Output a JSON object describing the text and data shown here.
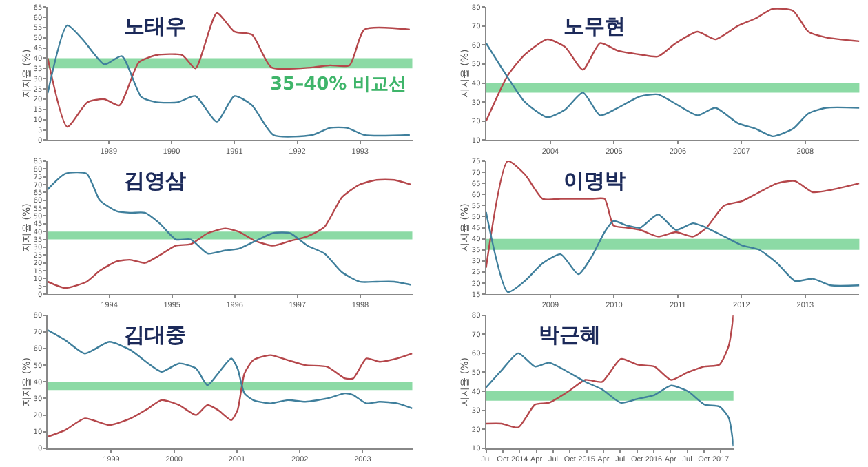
{
  "chart_data": [
    {
      "type": "line",
      "title": "노태우",
      "ylabel": "지지율 (%)",
      "xlim": [
        1988.03,
        1993.83
      ],
      "xticks": [
        1989,
        1990,
        1991,
        1992,
        1993
      ],
      "ylim": [
        0,
        65
      ],
      "yticks": [
        0,
        5,
        10,
        15,
        20,
        25,
        30,
        35,
        40,
        45,
        50,
        55,
        60,
        65
      ],
      "bands": [
        {
          "axis": "y",
          "from": 35,
          "to": 40,
          "label": "35–40% 비교선",
          "color": "#7fd69b"
        }
      ],
      "series": [
        {
          "color": "#b5474b",
          "x": [
            1988.03,
            1988.34,
            1988.66,
            1988.93,
            1989.17,
            1989.48,
            1989.76,
            1990.17,
            1990.38,
            1990.72,
            1991.0,
            1991.28,
            1991.59,
            1992.24,
            1992.52,
            1992.83,
            1993.07,
            1993.79
          ],
          "values": [
            40,
            6.5,
            18.5,
            20,
            17,
            38,
            41.5,
            41.5,
            35,
            62,
            53,
            51.5,
            35.5,
            35.5,
            36.5,
            36.5,
            54,
            54
          ]
        },
        {
          "color": "#3f7f9c",
          "x": [
            1988.03,
            1988.34,
            1988.59,
            1988.93,
            1989.21,
            1989.52,
            1989.76,
            1990.1,
            1990.38,
            1990.72,
            1991.0,
            1991.28,
            1991.62,
            1992.24,
            1992.52,
            1992.79,
            1993.07,
            1993.79
          ],
          "values": [
            23,
            56,
            49,
            37,
            41,
            21,
            18.5,
            18.5,
            21.5,
            9,
            21.5,
            17,
            2.5,
            2.5,
            6,
            6,
            2.5,
            2.5
          ]
        }
      ]
    },
    {
      "type": "line",
      "title": "노무현",
      "ylabel": "지지율 (%)",
      "xlim": [
        2002.99,
        2008.85
      ],
      "xticks": [
        2004,
        2005,
        2006,
        2007,
        2008
      ],
      "ylim": [
        10,
        80
      ],
      "yticks": [
        10,
        20,
        30,
        40,
        50,
        60,
        70,
        80
      ],
      "bands": [
        {
          "axis": "y",
          "from": 35,
          "to": 40,
          "color": "#7fd69b"
        }
      ],
      "x": [
        2002.99,
        2003.33,
        2003.6,
        2003.95,
        2004.23,
        2004.51,
        2004.78,
        2005.06,
        2005.41,
        2005.69,
        2005.97,
        2006.31,
        2006.59,
        2006.94,
        2007.22,
        2007.49,
        2007.81,
        2008.05,
        2008.33,
        2008.85
      ],
      "series": [
        {
          "color": "#b5474b",
          "values": [
            20,
            44,
            55,
            63,
            59,
            47,
            61,
            57,
            55,
            54,
            61,
            67,
            63,
            70,
            74,
            79,
            78,
            67,
            64,
            62
          ]
        },
        {
          "color": "#3f7f9c",
          "values": [
            61,
            43,
            30,
            22,
            26,
            35,
            23,
            27,
            33,
            34,
            29,
            23,
            27,
            19,
            16,
            12,
            16,
            24,
            27,
            27
          ]
        }
      ]
    },
    {
      "type": "line",
      "title": "김영삼",
      "ylabel": "지지율 (%)",
      "xlim": [
        1993.02,
        1998.83
      ],
      "xticks": [
        1994,
        1995,
        1996,
        1997,
        1998
      ],
      "ylim": [
        0,
        85
      ],
      "yticks": [
        0,
        5,
        10,
        15,
        20,
        25,
        30,
        35,
        40,
        45,
        50,
        55,
        60,
        65,
        70,
        75,
        80,
        85
      ],
      "bands": [
        {
          "axis": "y",
          "from": 35,
          "to": 40,
          "color": "#7fd69b"
        }
      ],
      "x": [
        1993.02,
        1993.3,
        1993.64,
        1993.85,
        1994.12,
        1994.33,
        1994.57,
        1994.81,
        1995.06,
        1995.3,
        1995.57,
        1995.85,
        1996.06,
        1996.33,
        1996.61,
        1996.88,
        1997.16,
        1997.43,
        1997.71,
        1997.99,
        1998.26,
        1998.54,
        1998.81
      ],
      "series": [
        {
          "color": "#b5474b",
          "values": [
            8,
            4,
            8,
            15,
            21,
            22,
            20,
            25,
            31,
            32,
            39,
            42,
            40,
            34,
            31,
            34,
            37,
            43,
            62,
            70,
            73,
            73,
            70
          ]
        },
        {
          "color": "#3f7f9c",
          "values": [
            67,
            77,
            77,
            60,
            53,
            52,
            52,
            45,
            35,
            35,
            26,
            28,
            29,
            34,
            39,
            39,
            31,
            26,
            14,
            8,
            8,
            8,
            6
          ]
        }
      ]
    },
    {
      "type": "line",
      "title": "이명박",
      "ylabel": "지지율 (%)",
      "xlim": [
        2007.99,
        2013.85
      ],
      "xticks": [
        2009,
        2010,
        2011,
        2012,
        2013
      ],
      "ylim": [
        15,
        75
      ],
      "yticks": [
        15,
        20,
        25,
        30,
        35,
        40,
        45,
        50,
        55,
        60,
        65,
        70,
        75
      ],
      "bands": [
        {
          "axis": "y",
          "from": 35,
          "to": 40,
          "color": "#7fd69b"
        }
      ],
      "x": [
        2007.99,
        2008.33,
        2008.6,
        2008.88,
        2009.16,
        2009.44,
        2009.65,
        2009.85,
        2009.99,
        2010.2,
        2010.41,
        2010.69,
        2010.97,
        2011.24,
        2011.45,
        2011.73,
        2012.01,
        2012.28,
        2012.56,
        2012.84,
        2013.12,
        2013.4,
        2013.85
      ],
      "series": [
        {
          "color": "#b5474b",
          "values": [
            27,
            75,
            69,
            58,
            58,
            58,
            58,
            58,
            46,
            45,
            44,
            41,
            43,
            41,
            45,
            55,
            57,
            61,
            65,
            66,
            61,
            62,
            65
          ]
        },
        {
          "color": "#3f7f9c",
          "values": [
            52,
            16,
            21,
            29,
            33,
            24,
            32,
            43,
            48,
            46,
            45,
            51,
            44,
            47,
            45,
            41,
            37,
            35,
            29,
            21,
            22,
            19,
            19
          ]
        }
      ]
    },
    {
      "type": "line",
      "title": "김대중",
      "ylabel": "지지율 (%)",
      "xlim": [
        1997.99,
        2003.79
      ],
      "xticks": [
        1999,
        2000,
        2001,
        2002,
        2003
      ],
      "ylim": [
        0,
        80
      ],
      "yticks": [
        0,
        10,
        20,
        30,
        40,
        50,
        60,
        70,
        80
      ],
      "bands": [
        {
          "axis": "y",
          "from": 35,
          "to": 40,
          "color": "#7fd69b"
        }
      ],
      "x": [
        1997.99,
        1998.27,
        1998.58,
        1998.97,
        1999.31,
        1999.59,
        1999.8,
        2000.08,
        2000.35,
        2000.53,
        2000.7,
        2000.91,
        2001.01,
        2001.12,
        2001.26,
        2001.53,
        2001.81,
        2002.09,
        2002.44,
        2002.72,
        2002.85,
        2003.06,
        2003.27,
        2003.55,
        2003.79
      ],
      "series": [
        {
          "color": "#b5474b",
          "values": [
            7,
            11,
            18,
            14,
            18,
            24,
            29,
            26,
            20,
            26,
            23,
            17,
            23,
            45,
            53,
            56,
            53,
            50,
            49,
            42,
            42,
            54,
            52,
            54,
            57
          ]
        },
        {
          "color": "#3f7f9c",
          "values": [
            71,
            65,
            57,
            64,
            59,
            51,
            46,
            51,
            48,
            38,
            45,
            54,
            48,
            33,
            29,
            27,
            29,
            28,
            30,
            33,
            32,
            27,
            28,
            27,
            24
          ]
        }
      ]
    },
    {
      "type": "line",
      "title": "박근혜",
      "ylabel": "지지율 (%)",
      "xlim": [
        2013.5,
        2017.19
      ],
      "xticks": [
        {
          "value": 2013.5,
          "label": "Jul"
        },
        {
          "value": 2013.75,
          "label": "Oct"
        },
        {
          "value": 2014,
          "label": "2014"
        },
        {
          "value": 2014.25,
          "label": "Apr"
        },
        {
          "value": 2014.5,
          "label": "Jul"
        },
        {
          "value": 2014.75,
          "label": "Oct"
        },
        {
          "value": 2015,
          "label": "2015"
        },
        {
          "value": 2015.25,
          "label": "Apr"
        },
        {
          "value": 2015.5,
          "label": "Jul"
        },
        {
          "value": 2015.75,
          "label": "Oct"
        },
        {
          "value": 2016,
          "label": "2016"
        },
        {
          "value": 2016.25,
          "label": "Apr"
        },
        {
          "value": 2016.5,
          "label": "Jul"
        },
        {
          "value": 2016.75,
          "label": "Oct"
        },
        {
          "value": 2017,
          "label": "2017"
        }
      ],
      "ylim": [
        10,
        80
      ],
      "yticks": [
        10,
        20,
        30,
        40,
        50,
        60,
        70,
        80
      ],
      "bands": [
        {
          "axis": "y",
          "from": 35,
          "to": 40,
          "color": "#7fd69b"
        }
      ],
      "x": [
        2013.5,
        2013.73,
        2013.98,
        2014.23,
        2014.44,
        2014.73,
        2014.98,
        2015.23,
        2015.51,
        2015.76,
        2016.01,
        2016.26,
        2016.51,
        2016.76,
        2016.98,
        2017.12,
        2017.19
      ],
      "series": [
        {
          "color": "#b5474b",
          "values": [
            23,
            23,
            21,
            33,
            34,
            40,
            46,
            45,
            57,
            54,
            53,
            46,
            50,
            53,
            54,
            64,
            80
          ]
        },
        {
          "color": "#3f7f9c",
          "values": [
            42,
            51,
            60,
            53,
            55,
            50,
            45,
            41,
            34,
            36,
            38,
            43,
            40,
            33,
            32,
            26,
            11
          ]
        }
      ]
    }
  ]
}
